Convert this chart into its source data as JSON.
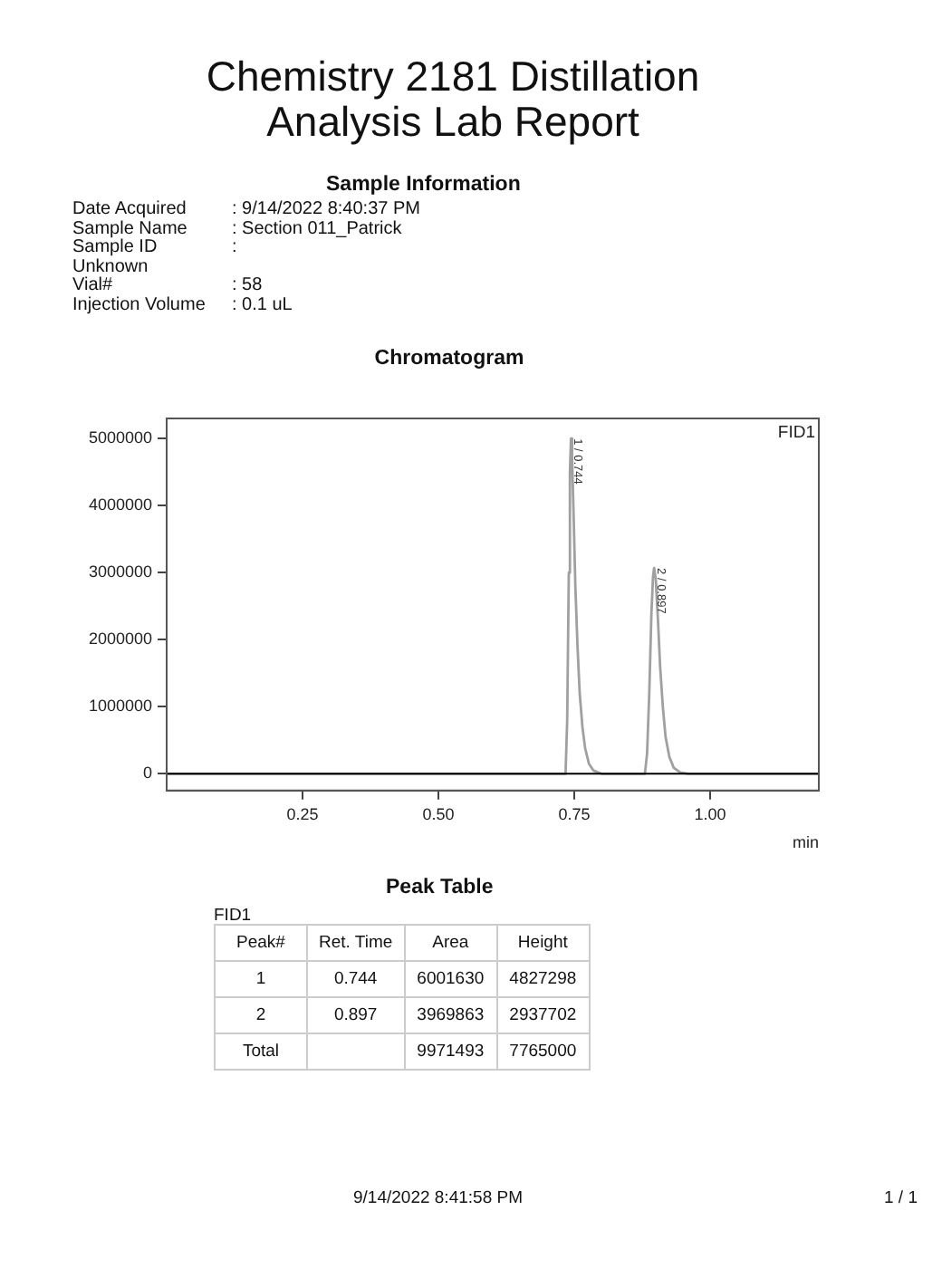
{
  "chart_data": {
    "type": "line",
    "title": "Chemistry 2181 Distillation Analysis Lab Report",
    "subtitle": "Chromatogram",
    "xlabel": "min",
    "annotations": [
      "Sample Information",
      "Date Acquired",
      ": 9/14/2022 8:40:37 PM",
      "Sample Name",
      ": Section 011_Patrick",
      "Sample ID",
      ":",
      "Unknown",
      "Vial#",
      ": 58",
      "Injection Volume",
      ": 0.1 uL",
      "FID1",
      "Peak Table",
      "FID1",
      "Peak#",
      "Ret. Time",
      "Area",
      "Height",
      "1",
      "0.744",
      "6001630",
      "4827298",
      "2",
      "0.897",
      "3969863",
      "2937702",
      "Total",
      "9971493",
      "7765000",
      "9/14/2022 8:41:58 PM",
      "1 / 1",
      {
        "text": "1 / 0.744",
        "x": 0.744,
        "y": 5000000
      },
      {
        "text": "2 / 0.897",
        "x": 0.897,
        "y": 3070000
      }
    ],
    "x": [
      0,
      0.7,
      0.734,
      0.737,
      0.74,
      0.742,
      0.744,
      0.746,
      0.749,
      0.752,
      0.756,
      0.76,
      0.765,
      0.77,
      0.777,
      0.785,
      0.8,
      0.88,
      0.884,
      0.888,
      0.892,
      0.895,
      0.897,
      0.9,
      0.904,
      0.908,
      0.913,
      0.918,
      0.925,
      0.933,
      0.945,
      0.96,
      1.2
    ],
    "series": [
      {
        "color": "#a0a0a0",
        "values": [
          0,
          0,
          0,
          800000,
          3000000,
          4500000,
          5000000,
          4700000,
          3800000,
          2800000,
          1900000,
          1200000,
          700000,
          380000,
          150000,
          50000,
          0,
          0,
          300000,
          1200000,
          2400000,
          2950000,
          3070000,
          2900000,
          2300000,
          1600000,
          1000000,
          550000,
          250000,
          90000,
          20000,
          0,
          0
        ]
      }
    ],
    "xlim": [
      0,
      1.2
    ],
    "xticks": [
      {
        "value": 0.25,
        "label": "0.25"
      },
      {
        "value": 0.5,
        "label": "0.50"
      },
      {
        "value": 0.75,
        "label": "0.75"
      },
      {
        "value": 1.0,
        "label": "1.00"
      }
    ],
    "ylim": [
      -250000,
      5300000
    ],
    "yticks": [
      0,
      1000000,
      2000000,
      3000000,
      4000000,
      5000000
    ],
    "ref_lines": [
      {
        "axis": "y",
        "value": 0,
        "color": "#000000"
      }
    ],
    "grid": false,
    "legend": false,
    "marker": "none",
    "line_style": "solid"
  }
}
